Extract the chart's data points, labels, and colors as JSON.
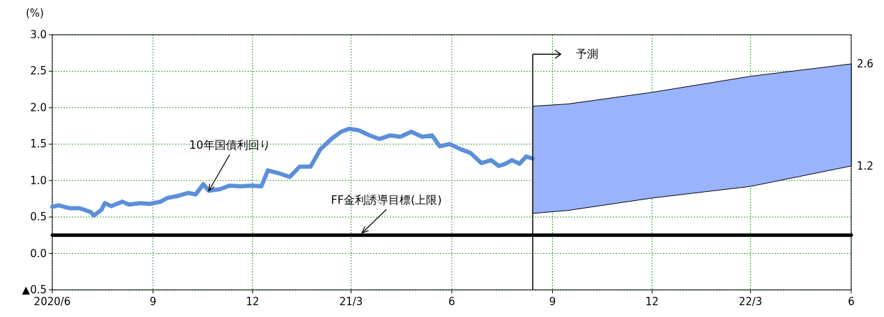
{
  "chart_data": {
    "type": "line",
    "ylabel": "(%)",
    "xlim": [
      "2020-06-01",
      "2022-06-01"
    ],
    "xticks": [
      {
        "value": "2020-06-01",
        "label": "2020/6"
      },
      {
        "value": "2020-09-01",
        "label": "9"
      },
      {
        "value": "2020-12-01",
        "label": "12"
      },
      {
        "value": "2021-03-01",
        "label": "21/3"
      },
      {
        "value": "2021-06-01",
        "label": "6"
      },
      {
        "value": "2021-09-01",
        "label": "9"
      },
      {
        "value": "2021-12-01",
        "label": "12"
      },
      {
        "value": "2022-03-01",
        "label": "22/3"
      },
      {
        "value": "2022-06-01",
        "label": "6"
      }
    ],
    "ylim": [
      -0.5,
      3.0
    ],
    "yticks": [
      {
        "value": -0.5,
        "label": "▲0.5"
      },
      {
        "value": 0,
        "label": "0.0"
      },
      {
        "value": 0.5,
        "label": "0.5"
      },
      {
        "value": 1,
        "label": "1.0"
      },
      {
        "value": 1.5,
        "label": "1.5"
      },
      {
        "value": 2,
        "label": "2.0"
      },
      {
        "value": 2.5,
        "label": "2.5"
      },
      {
        "value": 3,
        "label": "3.0"
      }
    ],
    "grid": true,
    "series": [
      {
        "color": "#5b8fd9",
        "x": [
          "2020-06-01",
          "2020-06-07",
          "2020-06-17",
          "2020-06-26",
          "2020-07-06",
          "2020-07-09",
          "2020-07-16",
          "2020-07-19",
          "2020-07-25",
          "2020-08-04",
          "2020-08-10",
          "2020-08-20",
          "2020-08-29",
          "2020-09-08",
          "2020-09-14",
          "2020-09-24",
          "2020-10-03",
          "2020-10-10",
          "2020-10-17",
          "2020-10-22",
          "2020-11-01",
          "2020-11-10",
          "2020-11-20",
          "2020-11-30",
          "2020-12-09",
          "2020-12-15",
          "2020-12-25",
          "2021-01-04",
          "2021-01-13",
          "2021-01-23",
          "2021-02-01",
          "2021-02-11",
          "2021-02-20",
          "2021-02-27",
          "2021-03-08",
          "2021-03-18",
          "2021-03-27",
          "2021-04-06",
          "2021-04-15",
          "2021-04-25",
          "2021-05-05",
          "2021-05-14",
          "2021-05-21",
          "2021-05-30",
          "2021-06-09",
          "2021-06-18",
          "2021-06-28",
          "2021-07-07",
          "2021-07-14",
          "2021-07-20",
          "2021-07-26",
          "2021-08-02",
          "2021-08-08",
          "2021-08-14"
        ],
        "values": [
          0.64,
          0.66,
          0.62,
          0.62,
          0.57,
          0.52,
          0.6,
          0.69,
          0.65,
          0.71,
          0.67,
          0.69,
          0.68,
          0.71,
          0.76,
          0.79,
          0.83,
          0.81,
          0.95,
          0.86,
          0.88,
          0.93,
          0.92,
          0.93,
          0.92,
          1.14,
          1.1,
          1.05,
          1.19,
          1.19,
          1.43,
          1.57,
          1.67,
          1.71,
          1.69,
          1.62,
          1.57,
          1.62,
          1.6,
          1.67,
          1.6,
          1.62,
          1.47,
          1.5,
          1.43,
          1.38,
          1.24,
          1.28,
          1.2,
          1.23,
          1.28,
          1.23,
          1.33,
          1.3
        ]
      },
      {
        "color": "#000000",
        "x": [
          "2020-06-01",
          "2022-06-01"
        ],
        "values": [
          0.25,
          0.25
        ]
      },
      {
        "type": "line",
        "color": "#99b3ff",
        "x": [
          "2021-08-14",
          "2021-09-15",
          "2021-12-01",
          "2022-03-01",
          "2022-06-01"
        ],
        "values": [
          null,
          null,
          null,
          null,
          null
        ],
        "upper": [
          2.02,
          2.05,
          2.21,
          2.43,
          2.6
        ],
        "lower": [
          0.55,
          0.59,
          0.76,
          0.92,
          1.2
        ]
      }
    ],
    "ref_lines": [
      {
        "axis": "x",
        "value": "2021-08-14",
        "label": "予測",
        "color": "#000000"
      }
    ],
    "annotations": [
      {
        "text": "10年国債利回り",
        "x": "2020-10-22",
        "y": 0.86
      },
      {
        "text": "FF金利誘導目標(上限)",
        "x": "2021-03-11",
        "y": 0.28
      },
      {
        "text": "2.6",
        "x": "2022-06-01",
        "y": 2.6
      },
      {
        "text": "1.2",
        "x": "2022-06-01",
        "y": 1.2
      }
    ]
  }
}
